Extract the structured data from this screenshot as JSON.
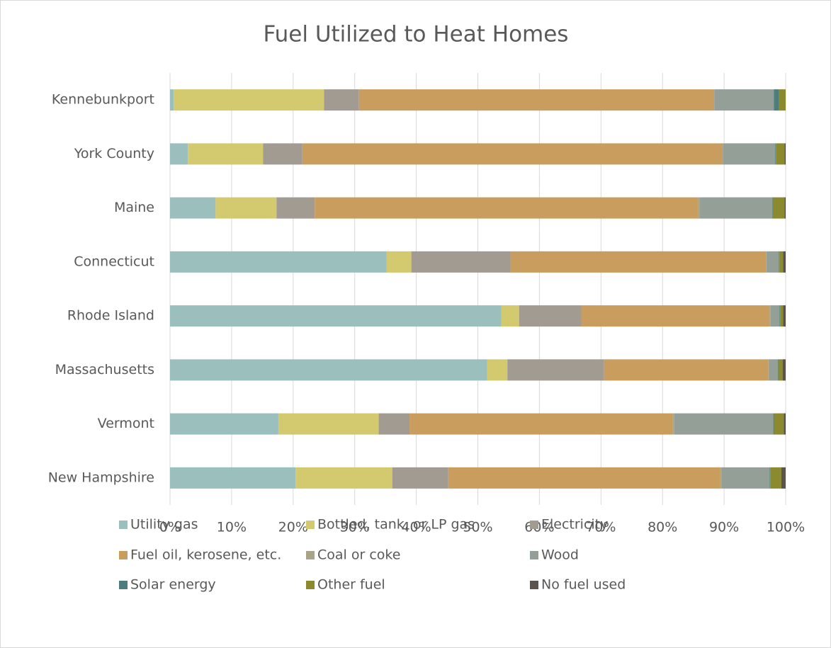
{
  "chart_data": {
    "type": "stacked_bar_horizontal",
    "title": "Fuel Utilized to Heat Homes",
    "categories": [
      "Kennebunkport",
      "York County",
      "Maine",
      "Connecticut",
      "Rhode Island",
      "Massachusetts",
      "Vermont",
      "New Hampshire"
    ],
    "series": [
      {
        "name": "Utility gas",
        "color": "#9bbfbd",
        "values": [
          0.6,
          2.9,
          7.4,
          35.2,
          53.8,
          51.5,
          17.6,
          20.4
        ]
      },
      {
        "name": "Bottled, tank, or LP gas",
        "color": "#d3c96e",
        "values": [
          24.4,
          12.2,
          9.9,
          4.0,
          2.9,
          3.3,
          16.3,
          15.7
        ]
      },
      {
        "name": "Electricity",
        "color": "#a29b92",
        "values": [
          5.7,
          6.4,
          6.2,
          16.1,
          10.1,
          15.7,
          5.0,
          9.1
        ]
      },
      {
        "name": "Fuel oil, kerosene, etc.",
        "color": "#c99d5e",
        "values": [
          57.7,
          68.2,
          62.3,
          41.5,
          30.6,
          26.7,
          42.7,
          44.2
        ]
      },
      {
        "name": "Coal or coke",
        "color": "#a7a48a",
        "values": [
          0,
          0.1,
          0.2,
          0.1,
          0.1,
          0.1,
          0.3,
          0.2
        ]
      },
      {
        "name": "Wood",
        "color": "#949f98",
        "values": [
          9.7,
          8.5,
          11.8,
          2.0,
          1.5,
          1.4,
          16.1,
          7.8
        ]
      },
      {
        "name": "Solar energy",
        "color": "#4d7d7d",
        "values": [
          0.8,
          0.1,
          0.1,
          0.1,
          0.1,
          0.1,
          0.1,
          0.1
        ]
      },
      {
        "name": "Other fuel",
        "color": "#8c8a2e",
        "values": [
          1.1,
          1.4,
          1.9,
          0.6,
          0.5,
          0.7,
          1.6,
          1.8
        ]
      },
      {
        "name": "No fuel used",
        "color": "#5a534e",
        "values": [
          0,
          0.2,
          0.2,
          0.4,
          0.4,
          0.5,
          0.3,
          0.7
        ]
      }
    ],
    "xlim": [
      0,
      100
    ],
    "xticks": [
      {
        "value": 0,
        "label": "0%"
      },
      {
        "value": 10,
        "label": "10%"
      },
      {
        "value": 20,
        "label": "20%"
      },
      {
        "value": 30,
        "label": "30%"
      },
      {
        "value": 40,
        "label": "40%"
      },
      {
        "value": 50,
        "label": "50%"
      },
      {
        "value": 60,
        "label": "60%"
      },
      {
        "value": 70,
        "label": "70%"
      },
      {
        "value": 80,
        "label": "80%"
      },
      {
        "value": 90,
        "label": "90%"
      },
      {
        "value": 100,
        "label": "100%"
      }
    ],
    "grid": true,
    "legend": "bottom"
  }
}
